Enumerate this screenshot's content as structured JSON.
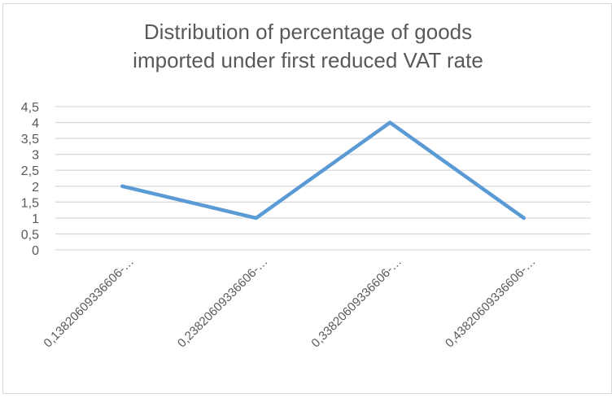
{
  "chart_data": {
    "type": "line",
    "title": "Distribution of percentage of goods imported under first reduced VAT rate",
    "title_lines": [
      "Distribution of percentage of goods",
      "imported under first reduced VAT rate"
    ],
    "xlabel": "",
    "ylabel": "",
    "categories": [
      "0,13820609336606-…",
      "0,23820609336606-…",
      "0,33820609336606-…",
      "0,43820609336606-…"
    ],
    "series": [
      {
        "name": "Series1",
        "values": [
          2,
          1,
          4,
          1
        ],
        "color": "#5b9bd5"
      }
    ],
    "ylim": [
      0,
      4.5
    ],
    "yticks": [
      0,
      0.5,
      1,
      1.5,
      2,
      2.5,
      3,
      3.5,
      4,
      4.5
    ],
    "ytick_labels": [
      "0",
      "0,5",
      "1",
      "1,5",
      "2",
      "2,5",
      "3",
      "3,5",
      "4",
      "4,5"
    ],
    "grid": true,
    "legend": "none",
    "gridline_color": "#d9d9d9",
    "text_color": "#595959"
  }
}
